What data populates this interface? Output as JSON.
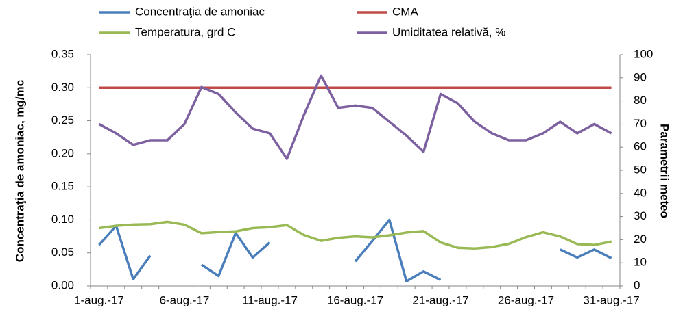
{
  "chart_data": {
    "type": "line",
    "categories": [
      "1-aug.-17",
      null,
      null,
      null,
      null,
      "6-aug.-17",
      null,
      null,
      null,
      null,
      "11-aug.-17",
      null,
      null,
      null,
      null,
      "16-aug.-17",
      null,
      null,
      null,
      null,
      "21-aug.-17",
      null,
      null,
      null,
      null,
      "26-aug.-17",
      null,
      null,
      null,
      null,
      "31-aug.-17"
    ],
    "ylabel": "Concentraţia de amoniac, mg/mc",
    "y2label": "Parametrii meteo",
    "ylim": [
      0,
      0.35
    ],
    "yticks": [
      {
        "value": 0,
        "label": "0.00"
      },
      {
        "value": 0.05,
        "label": "0.05"
      },
      {
        "value": 0.1,
        "label": "0.10"
      },
      {
        "value": 0.15,
        "label": "0.15"
      },
      {
        "value": 0.2,
        "label": "0.20"
      },
      {
        "value": 0.25,
        "label": "0.25"
      },
      {
        "value": 0.3,
        "label": "0.30"
      },
      {
        "value": 0.35,
        "label": "0.35"
      }
    ],
    "y2lim": [
      0,
      100
    ],
    "y2ticks": [
      0,
      10,
      20,
      30,
      40,
      50,
      60,
      70,
      80,
      90,
      100
    ],
    "legend": "top",
    "series": [
      {
        "name": "Concentraţia de amoniac",
        "color": "#4a7ebb",
        "values": [
          0.062,
          0.091,
          0.01,
          0.046,
          null,
          null,
          0.032,
          0.015,
          0.08,
          0.043,
          0.066,
          null,
          null,
          null,
          null,
          0.037,
          0.068,
          0.1,
          0.007,
          0.022,
          0.009,
          null,
          null,
          null,
          null,
          null,
          null,
          0.055,
          0.043,
          0.055,
          0.042
        ]
      },
      {
        "name": "CMA",
        "color": "#be4b48",
        "values": [
          0.3,
          0.3,
          0.3,
          0.3,
          0.3,
          0.3,
          0.3,
          0.3,
          0.3,
          0.3,
          0.3,
          0.3,
          0.3,
          0.3,
          0.3,
          0.3,
          0.3,
          0.3,
          0.3,
          0.3,
          0.3,
          0.3,
          0.3,
          0.3,
          0.3,
          0.3,
          0.3,
          0.3,
          0.3,
          0.3,
          0.3
        ]
      },
      {
        "name": "Temperatura, grd C",
        "color": "#98b954",
        "axis": "y2",
        "values": [
          25,
          26,
          26.5,
          26.7,
          27.7,
          26.5,
          22.8,
          23.3,
          23.6,
          25,
          25.4,
          26.3,
          22,
          19.5,
          20.8,
          21.4,
          21,
          21.9,
          23.1,
          23.7,
          18.8,
          16.5,
          16.2,
          16.8,
          18.2,
          21.1,
          23.2,
          21.4,
          18.1,
          17.7,
          19.2
        ]
      },
      {
        "name": "Umiditatea relativă, %",
        "color": "#7d60a0",
        "axis": "y2",
        "values": [
          70,
          66,
          61,
          63,
          63,
          70,
          86,
          83,
          75,
          68,
          66,
          55,
          74,
          91,
          77,
          78,
          77,
          71,
          65,
          58,
          83,
          79,
          71,
          66,
          63,
          63,
          66,
          71,
          66,
          70,
          66
        ]
      }
    ]
  }
}
